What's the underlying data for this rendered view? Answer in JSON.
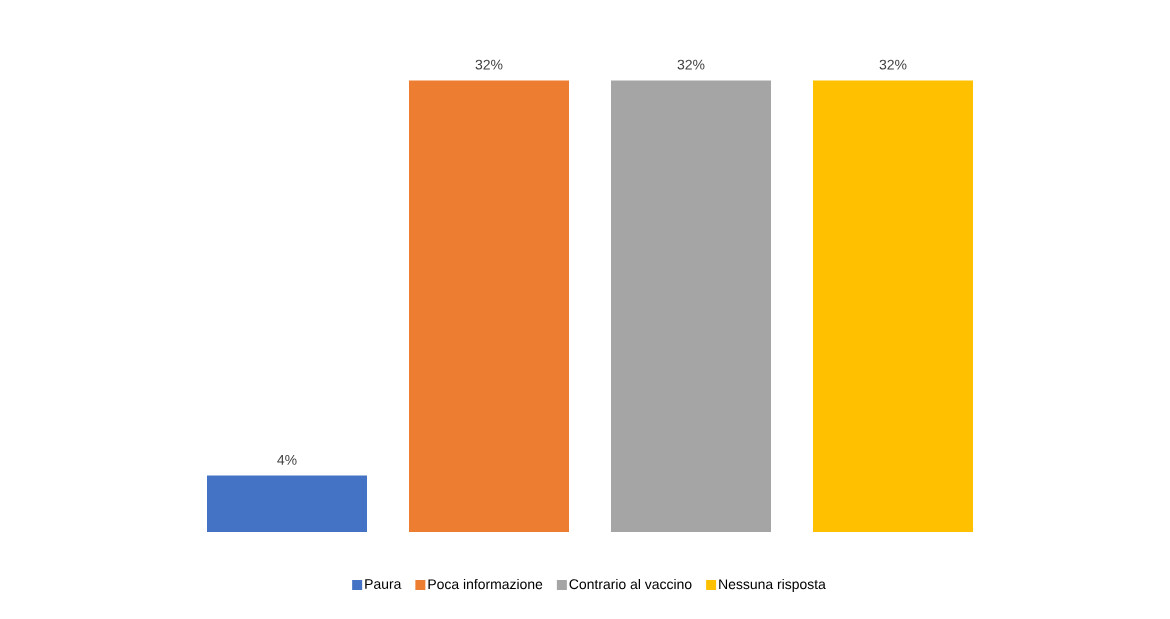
{
  "chart_data": {
    "type": "bar",
    "categories": [
      null
    ],
    "legend": "bottom",
    "series": [
      {
        "name": "Paura",
        "color": "#4472c4",
        "values": [
          4
        ],
        "value_labels": [
          "4%"
        ]
      },
      {
        "name": "Poca informazione",
        "color": "#ed7d31",
        "values": [
          32
        ],
        "value_labels": [
          "32%"
        ]
      },
      {
        "name": "Contrario al vaccino",
        "color": "#a5a5a5",
        "values": [
          32
        ],
        "value_labels": [
          "32%"
        ]
      },
      {
        "name": "Nessuna risposta",
        "color": "#ffc000",
        "values": [
          32
        ],
        "value_labels": [
          "32%"
        ]
      }
    ]
  }
}
